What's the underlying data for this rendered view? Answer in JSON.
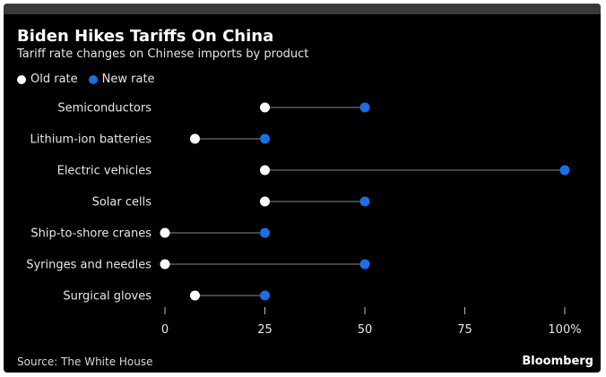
{
  "chart_data": {
    "type": "dot",
    "title": "Biden Hikes Tariffs On China",
    "subtitle": "Tariff rate changes on Chinese imports by product",
    "legend_position": "top-left",
    "series": [
      {
        "name": "Old rate",
        "color": "#ffffff",
        "values": [
          25,
          7.5,
          25,
          25,
          0,
          0,
          7.5
        ]
      },
      {
        "name": "New rate",
        "color": "#1a6fe8",
        "values": [
          50,
          25,
          100,
          50,
          25,
          50,
          25
        ]
      }
    ],
    "categories": [
      "Semiconductors",
      "Lithium-ion batteries",
      "Electric vehicles",
      "Solar cells",
      "Ship-to-shore cranes",
      "Syringes and needles",
      "Surgical gloves"
    ],
    "xlim": [
      0,
      100
    ],
    "xticks": [
      0,
      25,
      50,
      75,
      100
    ],
    "xtick_labels": [
      "0",
      "25",
      "50",
      "75",
      "100%"
    ],
    "grid": false,
    "source": "Source: The White House",
    "brand": "Bloomberg"
  },
  "colors": {
    "background": "#000000",
    "connector": "#5a5a5a",
    "text": "#e6e6e6"
  }
}
